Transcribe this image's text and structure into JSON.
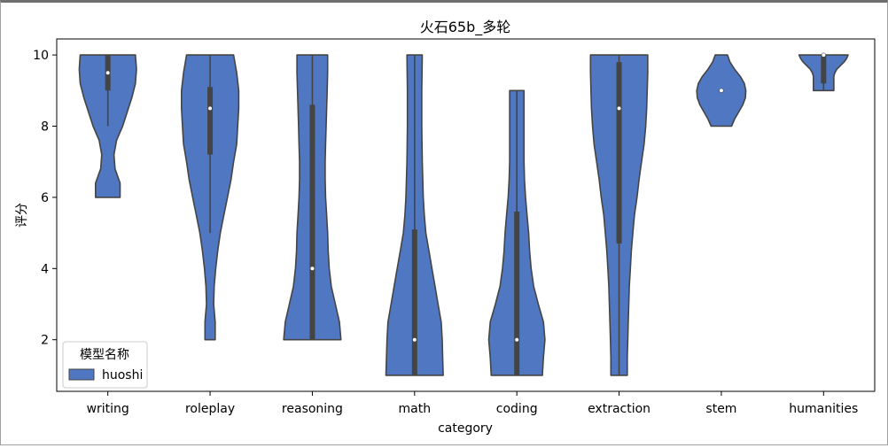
{
  "chart_data": {
    "type": "violin",
    "title": "火石65b_多轮",
    "xlabel": "category",
    "ylabel": "评分",
    "ylim": [
      0.55,
      10.45
    ],
    "yticks": [
      2,
      4,
      6,
      8,
      10
    ],
    "grid": false,
    "legend": {
      "title": "模型名称",
      "placement": "lower-left",
      "entries": [
        "huoshi"
      ]
    },
    "series": [
      {
        "name": "huoshi",
        "color": "#5078c2",
        "edge_color": "#444444",
        "violins": [
          {
            "category": "writing",
            "min": 6,
            "max": 10,
            "median": 9.5,
            "q1": 9,
            "q3": 10,
            "whisker_low": 8,
            "whisker_high": 10,
            "profile": [
              [
                6,
                0.24
              ],
              [
                6.4,
                0.24
              ],
              [
                6.8,
                0.14
              ],
              [
                7.2,
                0.12
              ],
              [
                7.6,
                0.17
              ],
              [
                8,
                0.29
              ],
              [
                8.4,
                0.38
              ],
              [
                8.8,
                0.47
              ],
              [
                9.2,
                0.54
              ],
              [
                9.6,
                0.56
              ],
              [
                10,
                0.54
              ]
            ]
          },
          {
            "category": "roleplay",
            "min": 2,
            "max": 10,
            "median": 8.5,
            "q1": 7.2,
            "q3": 9.1,
            "whisker_low": 5,
            "whisker_high": 10,
            "profile": [
              [
                2,
                0.1
              ],
              [
                2.5,
                0.1
              ],
              [
                3,
                0.07
              ],
              [
                3.5,
                0.08
              ],
              [
                4,
                0.11
              ],
              [
                4.5,
                0.15
              ],
              [
                5,
                0.2
              ],
              [
                5.5,
                0.27
              ],
              [
                6,
                0.34
              ],
              [
                6.5,
                0.41
              ],
              [
                7,
                0.46
              ],
              [
                7.5,
                0.52
              ],
              [
                8,
                0.54
              ],
              [
                8.5,
                0.56
              ],
              [
                9,
                0.56
              ],
              [
                9.5,
                0.52
              ],
              [
                10,
                0.46
              ]
            ]
          },
          {
            "category": "reasoning",
            "min": 2,
            "max": 10,
            "median": 4,
            "q1": 2,
            "q3": 8.6,
            "whisker_low": 2,
            "whisker_high": 10,
            "profile": [
              [
                2,
                0.56
              ],
              [
                2.5,
                0.53
              ],
              [
                3,
                0.45
              ],
              [
                3.5,
                0.37
              ],
              [
                4,
                0.33
              ],
              [
                4.5,
                0.31
              ],
              [
                5,
                0.3
              ],
              [
                5.5,
                0.28
              ],
              [
                6,
                0.26
              ],
              [
                6.5,
                0.25
              ],
              [
                7,
                0.25
              ],
              [
                7.5,
                0.26
              ],
              [
                8,
                0.27
              ],
              [
                8.5,
                0.28
              ],
              [
                9,
                0.29
              ],
              [
                9.5,
                0.3
              ],
              [
                10,
                0.3
              ]
            ]
          },
          {
            "category": "math",
            "min": 1,
            "max": 10,
            "median": 2,
            "q1": 1,
            "q3": 5.1,
            "whisker_low": 1,
            "whisker_high": 10,
            "profile": [
              [
                1,
                0.56
              ],
              [
                1.5,
                0.55
              ],
              [
                2,
                0.54
              ],
              [
                2.5,
                0.52
              ],
              [
                3,
                0.46
              ],
              [
                3.5,
                0.4
              ],
              [
                4,
                0.34
              ],
              [
                4.5,
                0.28
              ],
              [
                5,
                0.22
              ],
              [
                5.5,
                0.19
              ],
              [
                6,
                0.17
              ],
              [
                7,
                0.15
              ],
              [
                8,
                0.14
              ],
              [
                9,
                0.14
              ],
              [
                10,
                0.15
              ]
            ]
          },
          {
            "category": "coding",
            "min": 1,
            "max": 9,
            "median": 2,
            "q1": 1,
            "q3": 5.6,
            "whisker_low": 1,
            "whisker_high": 9,
            "profile": [
              [
                1,
                0.5
              ],
              [
                1.5,
                0.52
              ],
              [
                2,
                0.55
              ],
              [
                2.5,
                0.52
              ],
              [
                3,
                0.42
              ],
              [
                3.5,
                0.33
              ],
              [
                4,
                0.28
              ],
              [
                4.5,
                0.25
              ],
              [
                5,
                0.23
              ],
              [
                5.5,
                0.2
              ],
              [
                6,
                0.17
              ],
              [
                6.5,
                0.15
              ],
              [
                7,
                0.14
              ],
              [
                7.5,
                0.14
              ],
              [
                8,
                0.14
              ],
              [
                8.5,
                0.14
              ],
              [
                9,
                0.14
              ]
            ]
          },
          {
            "category": "extraction",
            "min": 1,
            "max": 10,
            "median": 8.5,
            "q1": 4.7,
            "q3": 9.8,
            "whisker_low": 1,
            "whisker_high": 10,
            "profile": [
              [
                1,
                0.16
              ],
              [
                1.5,
                0.16
              ],
              [
                2,
                0.17
              ],
              [
                2.5,
                0.18
              ],
              [
                3,
                0.19
              ],
              [
                3.5,
                0.2
              ],
              [
                4,
                0.22
              ],
              [
                4.5,
                0.24
              ],
              [
                5,
                0.27
              ],
              [
                5.5,
                0.3
              ],
              [
                6,
                0.35
              ],
              [
                6.5,
                0.39
              ],
              [
                7,
                0.44
              ],
              [
                7.5,
                0.49
              ],
              [
                8,
                0.52
              ],
              [
                8.5,
                0.54
              ],
              [
                9,
                0.55
              ],
              [
                9.5,
                0.56
              ],
              [
                10,
                0.56
              ]
            ]
          },
          {
            "category": "stem",
            "min": 8,
            "max": 10,
            "median": 9,
            "q1": 9,
            "q3": 9,
            "whisker_low": 9,
            "whisker_high": 9,
            "profile": [
              [
                8,
                0.2
              ],
              [
                8.2,
                0.26
              ],
              [
                8.4,
                0.34
              ],
              [
                8.6,
                0.42
              ],
              [
                8.8,
                0.47
              ],
              [
                9,
                0.48
              ],
              [
                9.2,
                0.45
              ],
              [
                9.4,
                0.37
              ],
              [
                9.6,
                0.26
              ],
              [
                9.8,
                0.17
              ],
              [
                10,
                0.12
              ]
            ]
          },
          {
            "category": "humanities",
            "min": 9,
            "max": 10,
            "median": 10,
            "q1": 9.2,
            "q3": 10,
            "whisker_low": 9,
            "whisker_high": 10,
            "profile": [
              [
                9,
                0.2
              ],
              [
                9.2,
                0.2
              ],
              [
                9.4,
                0.2
              ],
              [
                9.5,
                0.22
              ],
              [
                9.6,
                0.26
              ],
              [
                9.7,
                0.33
              ],
              [
                9.8,
                0.4
              ],
              [
                9.9,
                0.45
              ],
              [
                10,
                0.48
              ]
            ]
          }
        ]
      }
    ]
  }
}
